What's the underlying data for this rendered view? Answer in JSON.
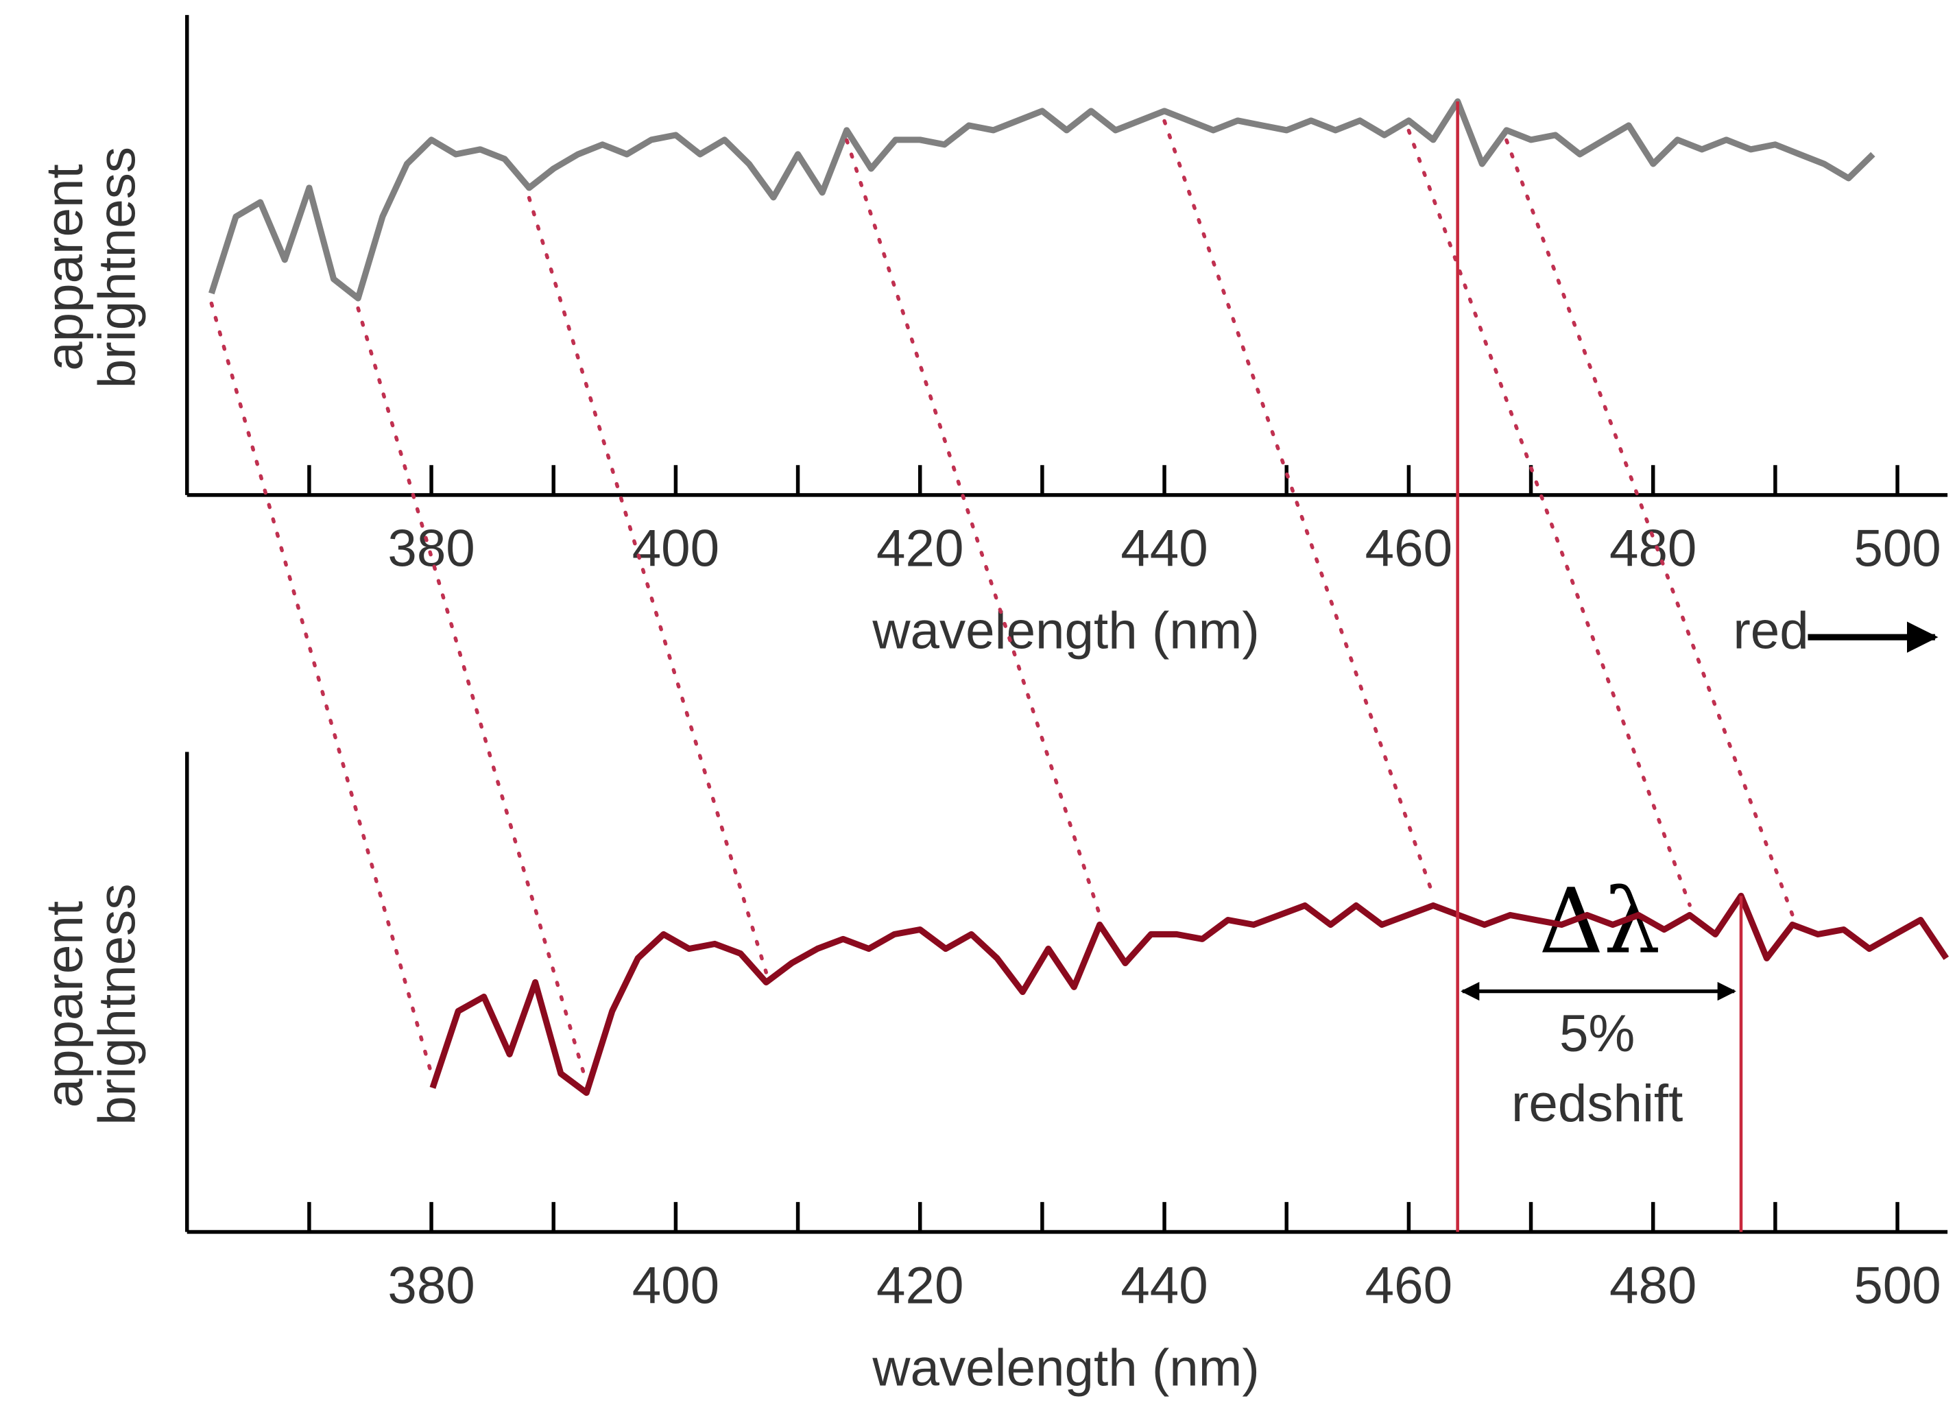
{
  "chart_data": [
    {
      "type": "line",
      "xlabel": "wavelength (nm)",
      "ylabel": [
        "apparent",
        "brightness"
      ],
      "xlim": [
        360,
        504.1
      ],
      "ylim": [
        0,
        100
      ],
      "xticks": [
        380,
        400,
        420,
        440,
        460,
        480,
        500
      ],
      "xminorticks": [
        370,
        390,
        410,
        430,
        450,
        470,
        490
      ],
      "color": "#808080",
      "x": [
        362,
        364,
        366,
        368,
        370,
        372,
        374,
        376,
        378,
        380,
        382,
        384,
        386,
        388,
        390,
        392,
        394,
        396,
        398,
        400,
        402,
        404,
        406,
        408,
        410,
        412,
        414,
        416,
        418,
        420,
        422,
        424,
        426,
        428,
        430,
        432,
        434,
        436,
        438,
        440,
        442,
        444,
        446,
        448,
        450,
        452,
        454,
        456,
        458,
        460,
        462,
        464,
        466,
        468,
        470,
        472,
        474,
        476,
        478,
        480,
        482,
        484,
        486,
        488,
        490,
        492,
        494,
        496,
        498
      ],
      "values": [
        42,
        58,
        61,
        49,
        64,
        45,
        41,
        58,
        69,
        74,
        71,
        72,
        70,
        64,
        68,
        71,
        73,
        71,
        74,
        75,
        71,
        74,
        69,
        62,
        71,
        63,
        76,
        68,
        74,
        74,
        73,
        77,
        76,
        78,
        80,
        76,
        80,
        76,
        78,
        80,
        78,
        76,
        78,
        77,
        76,
        78,
        76,
        78,
        75,
        78,
        74,
        82,
        69,
        76,
        74,
        75,
        71,
        74,
        77,
        69,
        74,
        72,
        74,
        72,
        73,
        71,
        69,
        66,
        71
      ]
    },
    {
      "type": "line",
      "xlabel": "wavelength (nm)",
      "ylabel": [
        "apparent",
        "brightness"
      ],
      "xlim": [
        360,
        504.1
      ],
      "ylim": [
        0,
        100
      ],
      "xticks": [
        380,
        400,
        420,
        440,
        460,
        480,
        500
      ],
      "xminorticks": [
        370,
        390,
        410,
        430,
        450,
        470,
        490
      ],
      "color": "#8b0a1e",
      "x": [
        380.1,
        382.2,
        384.3,
        386.4,
        388.5,
        390.6,
        392.7,
        394.8,
        396.9,
        399.0,
        401.1,
        403.2,
        405.3,
        407.4,
        409.5,
        411.6,
        413.7,
        415.8,
        417.9,
        420.0,
        422.1,
        424.2,
        426.3,
        428.4,
        430.5,
        432.6,
        434.7,
        436.8,
        438.9,
        441.0,
        443.1,
        445.2,
        447.3,
        449.4,
        451.5,
        453.6,
        455.7,
        457.8,
        459.9,
        462.0,
        464.1,
        466.2,
        468.3,
        470.4,
        472.5,
        474.6,
        476.7,
        478.8,
        480.9,
        483.0,
        485.1,
        487.2,
        489.3,
        491.4,
        493.5,
        495.6,
        497.7,
        499.8,
        501.9,
        504.0
      ],
      "values": [
        30,
        46,
        49,
        37,
        52,
        33,
        29,
        46,
        57,
        62,
        59,
        60,
        58,
        52,
        56,
        59,
        61,
        59,
        62,
        63,
        59,
        62,
        57,
        50,
        59,
        51,
        64,
        56,
        62,
        62,
        61,
        65,
        64,
        66,
        68,
        64,
        68,
        64,
        66,
        68,
        66,
        64,
        66,
        65,
        64,
        66,
        64,
        66,
        63,
        66,
        62,
        70,
        57,
        64,
        62,
        63,
        59,
        62,
        65,
        57
      ]
    }
  ],
  "annotations": {
    "direction_label": "red",
    "delta_label": "Δλ",
    "shift_label": [
      "5%",
      "redshift"
    ]
  }
}
